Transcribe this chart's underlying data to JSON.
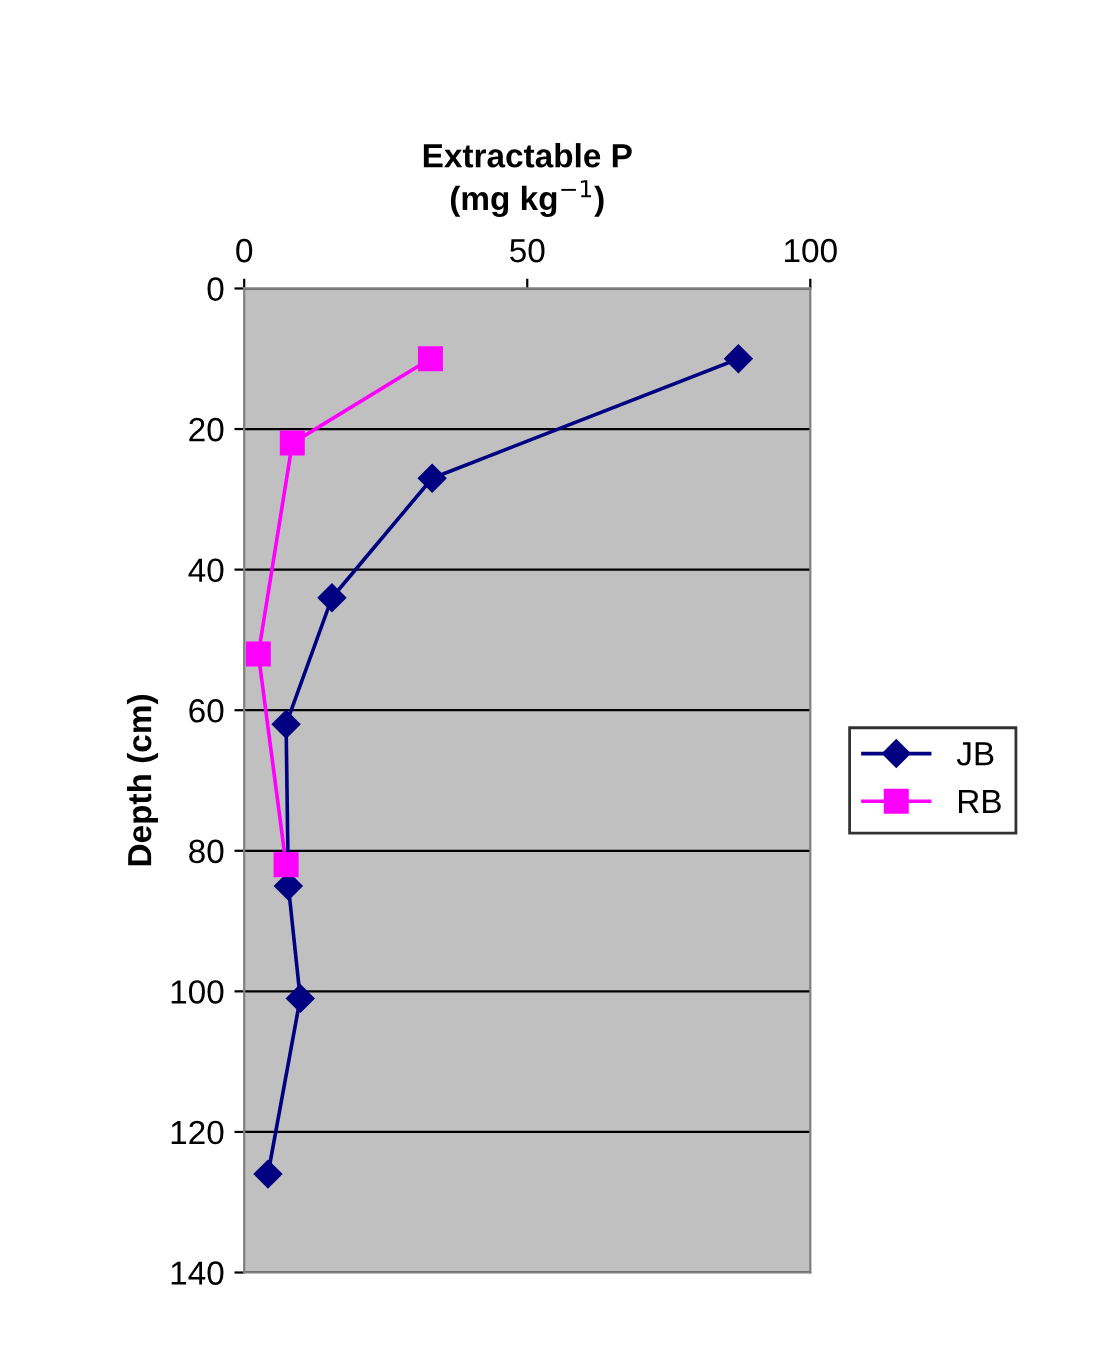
{
  "chart_data": {
    "type": "line",
    "xlabel": "Extractable P\n(mg kg$^{−1}$)",
    "ylabel": "Depth (cm)",
    "xlim": [
      0,
      100
    ],
    "xticks": [
      0,
      50,
      100
    ],
    "ylim": [
      140,
      0
    ],
    "yticks": [
      0,
      20,
      40,
      60,
      80,
      100,
      120,
      140
    ],
    "grid": "y",
    "legend": "right",
    "line_style": "solid",
    "series": [
      {
        "name": "JB",
        "color": "#000080",
        "marker": "diamond",
        "x": [
          87.3,
          33.2,
          15.5,
          7.4,
          7.8,
          9.9,
          4.2
        ],
        "values": [
          10,
          27,
          44,
          62,
          85,
          101,
          126
        ]
      },
      {
        "name": "RB",
        "color": "#ff00ff",
        "marker": "square",
        "x": [
          32.9,
          8.5,
          2.5,
          7.4
        ],
        "values": [
          10,
          22,
          52,
          82
        ]
      }
    ]
  }
}
